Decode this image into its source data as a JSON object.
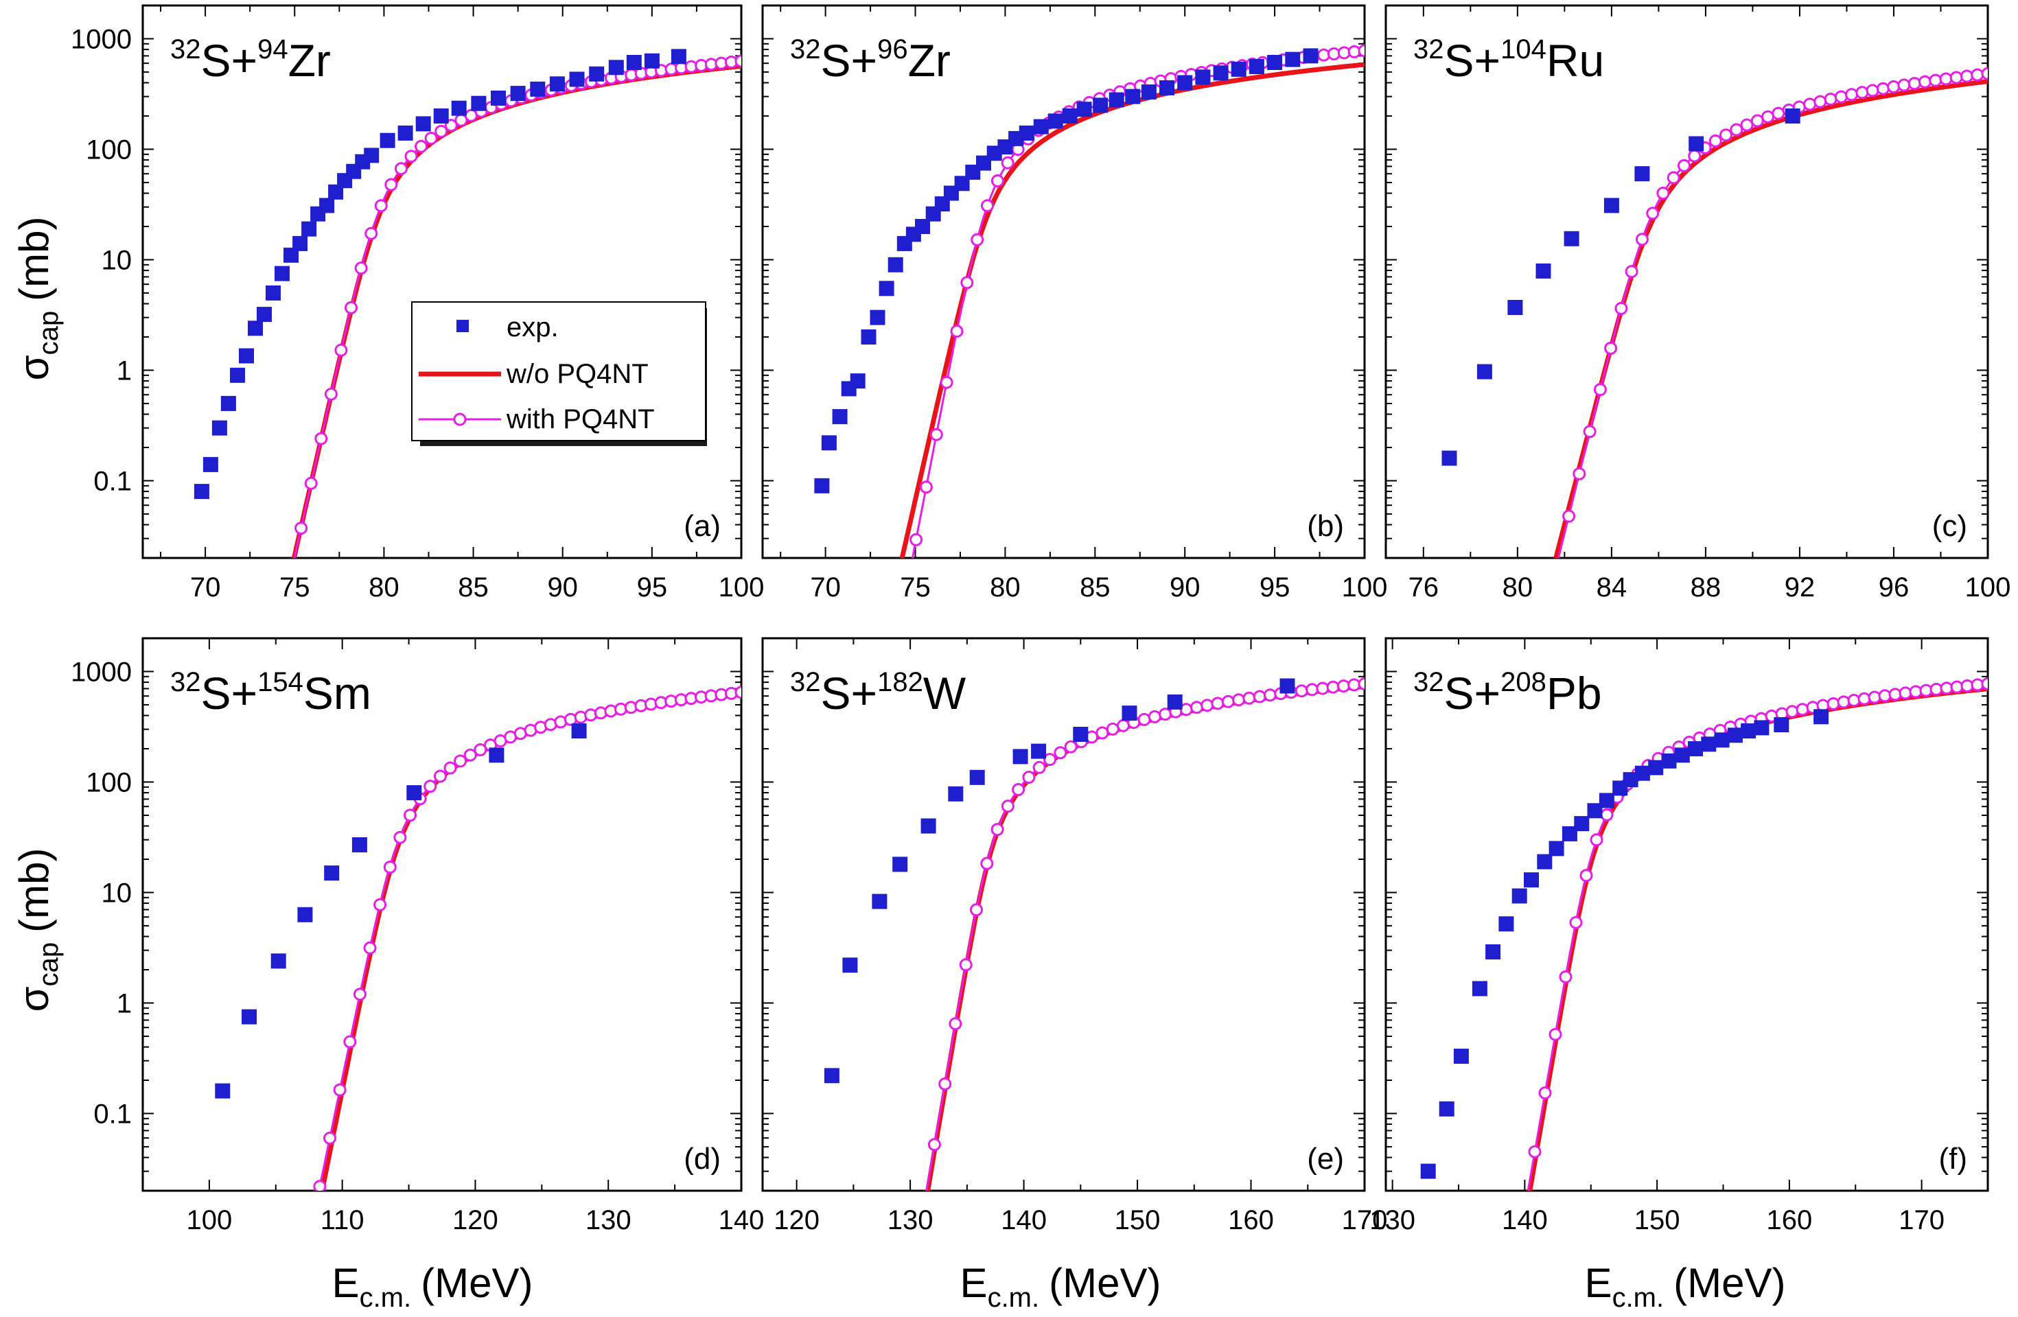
{
  "figure": {
    "ylabel_main": "σ",
    "ylabel_sub": "cap",
    "ylabel_unit": "(mb)",
    "xlabel_main": "E",
    "xlabel_sub": "c.m.",
    "xlabel_unit": "(MeV)"
  },
  "legend": {
    "exp": "exp.",
    "wo": "w/o  PQ4NT",
    "with": "with PQ4NT"
  },
  "colors": {
    "exp": "#1f1fcf",
    "wo": "#e8141a",
    "with": "#e61ee6"
  },
  "chart_data": [
    {
      "type": "scatter",
      "letter": "(a)",
      "projectile": "32",
      "proj_sym": "S+",
      "target_mass": "94",
      "target_sym": "Zr",
      "xlim": [
        66.5,
        100
      ],
      "ylim": [
        0.02,
        2000
      ],
      "xticks": [
        70,
        75,
        80,
        85,
        90,
        95,
        100
      ],
      "yticks": [
        0.1,
        1,
        10,
        100,
        1000
      ],
      "ytick_labels": [
        "0.1",
        "1",
        "10",
        "100",
        "1000"
      ],
      "exp": [
        [
          69.8,
          0.08
        ],
        [
          70.3,
          0.14
        ],
        [
          70.8,
          0.3
        ],
        [
          71.3,
          0.5
        ],
        [
          71.8,
          0.9
        ],
        [
          72.3,
          1.35
        ],
        [
          72.8,
          2.4
        ],
        [
          73.3,
          3.2
        ],
        [
          73.8,
          5
        ],
        [
          74.3,
          7.5
        ],
        [
          74.8,
          11
        ],
        [
          75.3,
          14
        ],
        [
          75.8,
          19
        ],
        [
          76.3,
          26
        ],
        [
          76.8,
          31
        ],
        [
          77.3,
          41
        ],
        [
          77.8,
          52
        ],
        [
          78.3,
          63
        ],
        [
          78.8,
          77
        ],
        [
          79.3,
          88
        ],
        [
          80.2,
          120
        ],
        [
          81.2,
          140
        ],
        [
          82.2,
          170
        ],
        [
          83.2,
          200
        ],
        [
          84.2,
          235
        ],
        [
          85.3,
          260
        ],
        [
          86.4,
          290
        ],
        [
          87.5,
          320
        ],
        [
          88.6,
          350
        ],
        [
          89.7,
          390
        ],
        [
          90.8,
          430
        ],
        [
          91.9,
          480
        ],
        [
          93,
          550
        ],
        [
          94,
          610
        ],
        [
          95,
          630
        ],
        [
          96.5,
          690
        ]
      ],
      "wo_params": {
        "B": 79.2,
        "R": 9.3,
        "hw": 3.8,
        "s": 1.0
      },
      "with_params": {
        "B": 79.2,
        "R": 9.3,
        "hw": 4.15,
        "s": 0.9
      },
      "with_range": [
        69.2,
        100
      ]
    },
    {
      "type": "scatter",
      "letter": "(b)",
      "projectile": "32",
      "proj_sym": "S+",
      "target_mass": "96",
      "target_sym": "Zr",
      "xlim": [
        66.5,
        100
      ],
      "ylim": [
        0.02,
        2000
      ],
      "xticks": [
        70,
        75,
        80,
        85,
        90,
        95,
        100
      ],
      "yticks": [
        0.1,
        1,
        10,
        100,
        1000
      ],
      "ytick_labels": [
        "0.1",
        "1",
        "10",
        "100",
        "1000"
      ],
      "exp": [
        [
          69.8,
          0.09
        ],
        [
          70.2,
          0.22
        ],
        [
          70.8,
          0.38
        ],
        [
          71.3,
          0.68
        ],
        [
          71.8,
          0.8
        ],
        [
          72.4,
          2
        ],
        [
          72.9,
          3
        ],
        [
          73.4,
          5.5
        ],
        [
          73.9,
          9
        ],
        [
          74.4,
          14
        ],
        [
          74.9,
          17
        ],
        [
          75.4,
          20
        ],
        [
          76,
          26
        ],
        [
          76.5,
          32
        ],
        [
          77,
          40
        ],
        [
          77.6,
          49
        ],
        [
          78.2,
          62
        ],
        [
          78.8,
          75
        ],
        [
          79.4,
          92
        ],
        [
          80,
          105
        ],
        [
          80.6,
          125
        ],
        [
          81.2,
          140
        ],
        [
          82,
          160
        ],
        [
          82.8,
          180
        ],
        [
          83.6,
          200
        ],
        [
          84.4,
          230
        ],
        [
          85.3,
          250
        ],
        [
          86.2,
          280
        ],
        [
          87.1,
          300
        ],
        [
          88,
          330
        ],
        [
          89,
          360
        ],
        [
          90,
          400
        ],
        [
          91,
          450
        ],
        [
          92,
          490
        ],
        [
          93,
          530
        ],
        [
          94,
          560
        ],
        [
          95,
          610
        ],
        [
          96,
          650
        ],
        [
          97,
          700
        ]
      ],
      "wo_params": {
        "B": 78.5,
        "R": 9.3,
        "hw": 3.8,
        "s": 1.0
      },
      "with_params": {
        "B": 78.5,
        "R": 9.3,
        "hw": 4.3,
        "s": 0.75
      },
      "with_range": [
        68.8,
        100
      ]
    },
    {
      "type": "scatter",
      "letter": "(c)",
      "projectile": "32",
      "proj_sym": "S+",
      "target_mass": "104",
      "target_sym": "Ru",
      "xlim": [
        74.4,
        100
      ],
      "ylim": [
        0.02,
        2000
      ],
      "xticks": [
        76,
        80,
        84,
        88,
        92,
        96,
        100
      ],
      "yticks": [
        0.1,
        1,
        10,
        100,
        1000
      ],
      "ytick_labels": [
        "0.1",
        "1",
        "10",
        "100",
        "1000"
      ],
      "exp": [
        [
          77.1,
          0.16
        ],
        [
          78.6,
          0.97
        ],
        [
          79.9,
          3.7
        ],
        [
          81.1,
          7.9
        ],
        [
          82.3,
          15.5
        ],
        [
          84,
          31
        ],
        [
          85.3,
          60
        ],
        [
          87.6,
          112
        ],
        [
          91.7,
          200
        ]
      ],
      "wo_params": {
        "B": 85.2,
        "R": 9.4,
        "hw": 3.3,
        "s": 1.0
      },
      "with_params": {
        "B": 85.2,
        "R": 9.4,
        "hw": 3.7,
        "s": 0.85
      },
      "with_range": [
        75.5,
        100
      ]
    },
    {
      "type": "scatter",
      "letter": "(d)",
      "projectile": "32",
      "proj_sym": "S+",
      "target_mass": "154",
      "target_sym": "Sm",
      "xlim": [
        95,
        140
      ],
      "ylim": [
        0.02,
        2000
      ],
      "xticks": [
        100,
        110,
        120,
        130,
        140
      ],
      "yticks": [
        0.1,
        1,
        10,
        100,
        1000
      ],
      "ytick_labels": [
        "0.1",
        "1",
        "10",
        "100",
        "1000"
      ],
      "exp": [
        [
          101,
          0.16
        ],
        [
          103,
          0.75
        ],
        [
          105.2,
          2.4
        ],
        [
          107.2,
          6.3
        ],
        [
          109.2,
          15
        ],
        [
          111.3,
          27
        ],
        [
          115.4,
          80
        ],
        [
          121.6,
          175
        ],
        [
          127.8,
          290
        ]
      ],
      "wo_params": {
        "B": 113.5,
        "R": 10.7,
        "hw": 4.1,
        "s": 1.1
      },
      "with_params": {
        "B": 113.5,
        "R": 10.7,
        "hw": 4.45,
        "s": 1.05
      },
      "with_range": [
        98.5,
        140
      ]
    },
    {
      "type": "scatter",
      "letter": "(e)",
      "projectile": "32",
      "proj_sym": "S+",
      "target_mass": "182",
      "target_sym": "W",
      "xlim": [
        117,
        170
      ],
      "ylim": [
        0.02,
        2000
      ],
      "xticks": [
        120,
        130,
        140,
        150,
        160,
        170
      ],
      "yticks": [
        0.1,
        1,
        10,
        100,
        1000
      ],
      "ytick_labels": [
        "0.1",
        "1",
        "10",
        "100",
        "1000"
      ],
      "exp": [
        [
          123.1,
          0.22
        ],
        [
          124.7,
          2.2
        ],
        [
          127.3,
          8.3
        ],
        [
          129.1,
          18
        ],
        [
          131.6,
          40
        ],
        [
          134,
          78
        ],
        [
          135.9,
          110
        ],
        [
          139.7,
          170
        ],
        [
          141.3,
          190
        ],
        [
          145,
          270
        ],
        [
          149.3,
          420
        ],
        [
          153.3,
          530
        ],
        [
          163.2,
          740
        ]
      ],
      "wo_params": {
        "B": 136.5,
        "R": 10.9,
        "hw": 4.5,
        "s": 1.0
      },
      "with_params": {
        "B": 136.5,
        "R": 10.9,
        "hw": 4.8,
        "s": 0.95
      },
      "with_range": [
        119.2,
        170
      ]
    },
    {
      "type": "scatter",
      "letter": "(f)",
      "projectile": "32",
      "proj_sym": "S+",
      "target_mass": "208",
      "target_sym": "Pb",
      "xlim": [
        129.5,
        175
      ],
      "ylim": [
        0.02,
        2000
      ],
      "xticks": [
        130,
        140,
        150,
        160,
        170
      ],
      "yticks": [
        0.1,
        1,
        10,
        100,
        1000
      ],
      "ytick_labels": [
        "0.1",
        "1",
        "10",
        "100",
        "1000"
      ],
      "exp": [
        [
          132.7,
          0.03
        ],
        [
          134.1,
          0.11
        ],
        [
          135.2,
          0.33
        ],
        [
          136.6,
          1.35
        ],
        [
          137.6,
          2.9
        ],
        [
          138.6,
          5.2
        ],
        [
          139.6,
          9.3
        ],
        [
          140.5,
          13
        ],
        [
          141.5,
          19
        ],
        [
          142.4,
          25
        ],
        [
          143.4,
          34
        ],
        [
          144.3,
          42
        ],
        [
          145.3,
          55
        ],
        [
          146.2,
          68
        ],
        [
          147.2,
          88
        ],
        [
          148,
          105
        ],
        [
          148.9,
          120
        ],
        [
          149.9,
          135
        ],
        [
          150.9,
          155
        ],
        [
          151.9,
          175
        ],
        [
          152.9,
          200
        ],
        [
          153.9,
          220
        ],
        [
          154.9,
          240
        ],
        [
          155.9,
          265
        ],
        [
          156.9,
          290
        ],
        [
          157.9,
          310
        ],
        [
          159.4,
          330
        ],
        [
          162.4,
          390
        ]
      ],
      "wo_params": {
        "B": 144.6,
        "R": 11.3,
        "hw": 3.9,
        "s": 1.0
      },
      "with_params": {
        "B": 144.6,
        "R": 11.3,
        "hw": 4.4,
        "s": 0.9
      },
      "with_range": [
        132.2,
        175
      ]
    }
  ]
}
